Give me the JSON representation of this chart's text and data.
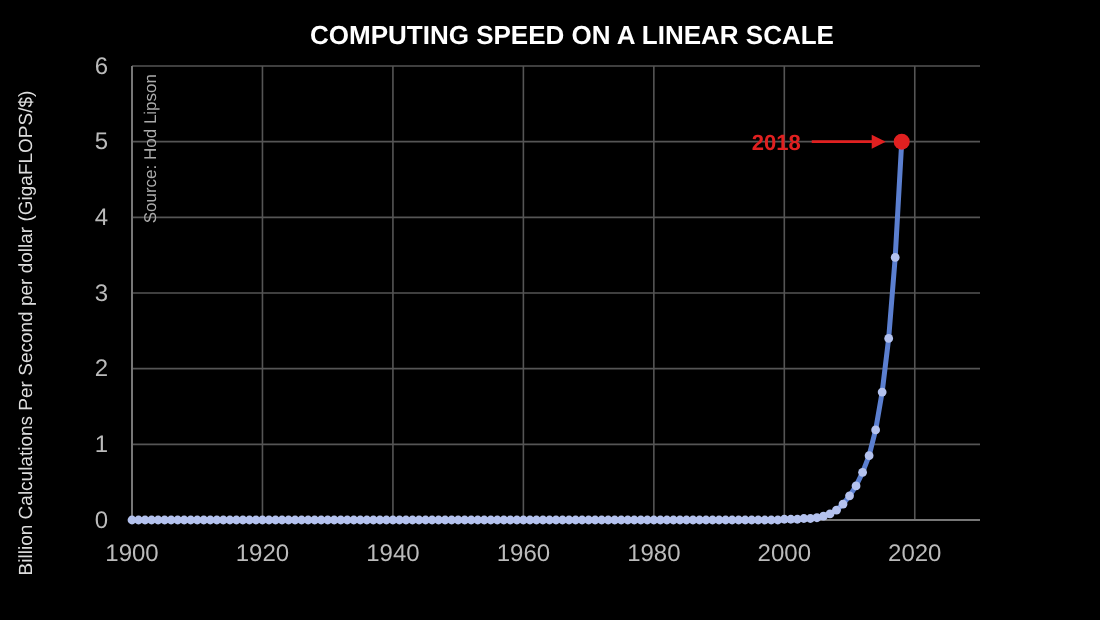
{
  "chart_data": {
    "type": "line",
    "title": "COMPUTING SPEED ON A LINEAR SCALE",
    "ylabel": "Billion Calculations Per Second per dollar (GigaFLOPS/$)",
    "annotations": [
      "Source: Hod Lipson",
      "2018"
    ],
    "xlim": [
      1900,
      2030
    ],
    "xticks": [
      1900,
      1920,
      1940,
      1960,
      1980,
      2000,
      2020
    ],
    "ylim": [
      0,
      6
    ],
    "yticks": [
      0,
      1,
      2,
      3,
      4,
      5,
      6
    ],
    "grid": true,
    "marker": "circle",
    "line_style": "solid",
    "series": [
      {
        "color": "#5b7fd0",
        "x": [
          1900,
          1901,
          1902,
          1903,
          1904,
          1905,
          1906,
          1907,
          1908,
          1909,
          1910,
          1911,
          1912,
          1913,
          1914,
          1915,
          1916,
          1917,
          1918,
          1919,
          1920,
          1921,
          1922,
          1923,
          1924,
          1925,
          1926,
          1927,
          1928,
          1929,
          1930,
          1931,
          1932,
          1933,
          1934,
          1935,
          1936,
          1937,
          1938,
          1939,
          1940,
          1941,
          1942,
          1943,
          1944,
          1945,
          1946,
          1947,
          1948,
          1949,
          1950,
          1951,
          1952,
          1953,
          1954,
          1955,
          1956,
          1957,
          1958,
          1959,
          1960,
          1961,
          1962,
          1963,
          1964,
          1965,
          1966,
          1967,
          1968,
          1969,
          1970,
          1971,
          1972,
          1973,
          1974,
          1975,
          1976,
          1977,
          1978,
          1979,
          1980,
          1981,
          1982,
          1983,
          1984,
          1985,
          1986,
          1987,
          1988,
          1989,
          1990,
          1991,
          1992,
          1993,
          1994,
          1995,
          1996,
          1997,
          1998,
          1999,
          2000,
          2001,
          2002,
          2003,
          2004,
          2005,
          2006,
          2007,
          2008,
          2009,
          2010,
          2011,
          2012,
          2013,
          2014,
          2015,
          2016,
          2017,
          2018
        ],
        "values": [
          0,
          0,
          0,
          0,
          0,
          0,
          0,
          0,
          0,
          0,
          0,
          0,
          0,
          0,
          0,
          0,
          0,
          0,
          0,
          0,
          0,
          0,
          0,
          0,
          0,
          0,
          0,
          0,
          0,
          0,
          0,
          0,
          0,
          0,
          0,
          0,
          0,
          0,
          0,
          0,
          0,
          0,
          0,
          0,
          0,
          0,
          0,
          0,
          0,
          0,
          0,
          0,
          0,
          0,
          0,
          0,
          0,
          0,
          0,
          0,
          0,
          0,
          0,
          0,
          0,
          0,
          0,
          0,
          0,
          0,
          0,
          0,
          0,
          0,
          0,
          0,
          0,
          0,
          0,
          0,
          0,
          0,
          0,
          0,
          0,
          0,
          0,
          0,
          0,
          0,
          0,
          0,
          0,
          0,
          0,
          0,
          0,
          0,
          0,
          0,
          0.01,
          0.01,
          0.01,
          0.02,
          0.02,
          0.03,
          0.05,
          0.08,
          0.13,
          0.21,
          0.32,
          0.45,
          0.63,
          0.85,
          1.19,
          1.69,
          2.4,
          3.47,
          5.0
        ]
      },
      {
        "type": "scatter",
        "color": "#e02020",
        "x": [
          2018
        ],
        "values": [
          5.0
        ]
      }
    ]
  }
}
